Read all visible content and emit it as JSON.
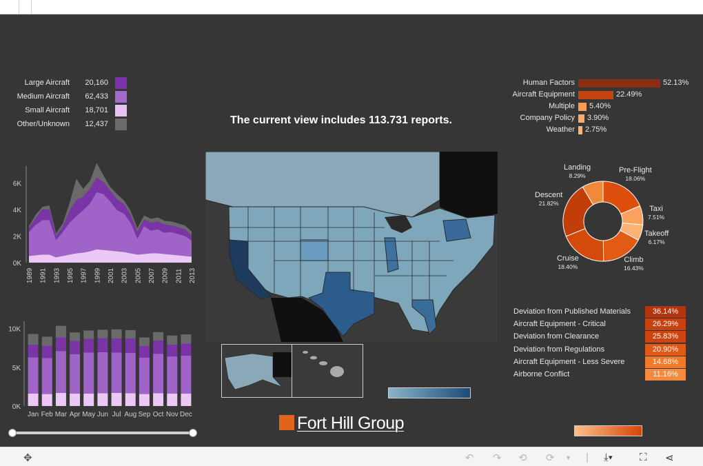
{
  "headline": "The current view includes 113.731 reports.",
  "aircraft_legend": [
    {
      "label": "Large Aircraft",
      "value": "20,160",
      "color": "#7a33a8"
    },
    {
      "label": "Medium Aircraft",
      "value": "62,433",
      "color": "#a26acc"
    },
    {
      "label": "Small Aircraft",
      "value": "18,701",
      "color": "#e6c4f2"
    },
    {
      "label": "Other/Unknown",
      "value": "12,437",
      "color": "#6a6a6a"
    }
  ],
  "factors": [
    {
      "label": "Human Factors",
      "value": "52.13%",
      "pct": 52.13,
      "color": "#8c2e14"
    },
    {
      "label": "Aircraft Equipment",
      "value": "22.49%",
      "pct": 22.49,
      "color": "#c44412"
    },
    {
      "label": "Multiple",
      "value": "5.40%",
      "pct": 5.4,
      "color": "#f79b55"
    },
    {
      "label": "Company Policy",
      "value": "3.90%",
      "pct": 3.9,
      "color": "#f7ab6c"
    },
    {
      "label": "Weather",
      "value": "2.75%",
      "pct": 2.75,
      "color": "#f7b57a"
    }
  ],
  "flight_phase": [
    {
      "label": "Pre-Flight",
      "value": "18.06%",
      "pct": 18.06,
      "color": "#dd4d0c"
    },
    {
      "label": "Taxi",
      "value": "7.51%",
      "pct": 7.51,
      "color": "#fca25f"
    },
    {
      "label": "Takeoff",
      "value": "6.17%",
      "pct": 6.17,
      "color": "#fdb174"
    },
    {
      "label": "Climb",
      "value": "16.43%",
      "pct": 16.43,
      "color": "#e25b14"
    },
    {
      "label": "Cruise",
      "value": "18.40%",
      "pct": 18.4,
      "color": "#d34a0b"
    },
    {
      "label": "Descent",
      "value": "21.82%",
      "pct": 21.82,
      "color": "#c23e08"
    },
    {
      "label": "Landing",
      "value": "8.29%",
      "pct": 8.29,
      "color": "#f08a3a"
    }
  ],
  "deviations": [
    {
      "label": "Deviation from Published Materials",
      "value": "36.14%",
      "color": "#b3330d"
    },
    {
      "label": "Aircraft Equipment - Critical",
      "value": "26.29%",
      "color": "#c9410e"
    },
    {
      "label": "Deviation from Clearance",
      "value": "25.83%",
      "color": "#cc4510"
    },
    {
      "label": "Deviation from Regulations",
      "value": "20.90%",
      "color": "#e05a16"
    },
    {
      "label": "Aircraft Equipment - Less Severe",
      "value": "14.68%",
      "color": "#f2782a"
    },
    {
      "label": "Airborne Conflict",
      "value": "11.16%",
      "color": "#f48a3c"
    }
  ],
  "logo_text": "Fort Hill Group",
  "chart_data": [
    {
      "type": "area",
      "x": [
        "1989",
        "1990",
        "1991",
        "1992",
        "1993",
        "1994",
        "1995",
        "1996",
        "1997",
        "1998",
        "1999",
        "2000",
        "2001",
        "2002",
        "2003",
        "2004",
        "2005",
        "2006",
        "2007",
        "2008",
        "2009",
        "2010",
        "2011",
        "2012",
        "2013"
      ],
      "x_tick_labels": [
        "1989",
        "1991",
        "1993",
        "1995",
        "1997",
        "1999",
        "2001",
        "2003",
        "2005",
        "2007",
        "2009",
        "2011",
        "2013"
      ],
      "y_tick_labels": [
        "6K",
        "4K",
        "2K",
        "0K"
      ],
      "ylim": [
        0,
        7000
      ],
      "series": [
        {
          "name": "Small Aircraft",
          "values": [
            500,
            550,
            600,
            600,
            400,
            500,
            600,
            700,
            750,
            850,
            1000,
            950,
            900,
            850,
            800,
            700,
            600,
            650,
            700,
            700,
            650,
            600,
            550,
            500,
            450
          ]
        },
        {
          "name": "Medium Aircraft",
          "values": [
            1800,
            2300,
            2600,
            2600,
            1300,
            1800,
            2400,
            2800,
            3200,
            3600,
            4300,
            4200,
            3700,
            3100,
            2900,
            2300,
            1200,
            2100,
            1700,
            1800,
            1600,
            1700,
            1600,
            1500,
            1200
          ]
        },
        {
          "name": "Large Aircraft",
          "values": [
            300,
            500,
            800,
            800,
            300,
            400,
            900,
            1200,
            1000,
            1100,
            1100,
            900,
            800,
            800,
            700,
            600,
            500,
            500,
            600,
            600,
            600,
            500,
            500,
            500,
            400
          ]
        },
        {
          "name": "Other/Unknown",
          "values": [
            150,
            250,
            200,
            300,
            200,
            250,
            600,
            1600,
            600,
            600,
            1100,
            500,
            300,
            400,
            300,
            300,
            300,
            300,
            300,
            300,
            300,
            300,
            300,
            300,
            300
          ]
        }
      ]
    },
    {
      "type": "bar",
      "categories": [
        "Jan",
        "Feb",
        "Mar",
        "Apr",
        "May",
        "Jun",
        "Jul",
        "Aug",
        "Sep",
        "Oct",
        "Nov",
        "Dec"
      ],
      "y_tick_labels": [
        "10K",
        "5K",
        "0K"
      ],
      "ylim": [
        0,
        10500
      ],
      "series": [
        {
          "name": "Small Aircraft",
          "values": [
            1600,
            1550,
            1700,
            1600,
            1600,
            1650,
            1700,
            1650,
            1550,
            1650,
            1600,
            1600
          ]
        },
        {
          "name": "Medium Aircraft",
          "values": [
            4700,
            4650,
            5400,
            5100,
            5300,
            5300,
            5200,
            5200,
            4700,
            5100,
            4800,
            4900
          ]
        },
        {
          "name": "Large Aircraft",
          "values": [
            1600,
            1550,
            1750,
            1700,
            1750,
            1800,
            1800,
            1850,
            1500,
            1700,
            1500,
            1550
          ]
        },
        {
          "name": "Other/Unknown",
          "values": [
            1400,
            1200,
            1500,
            1100,
            1100,
            1100,
            1200,
            1100,
            1100,
            1100,
            1200,
            1200
          ]
        }
      ]
    }
  ]
}
